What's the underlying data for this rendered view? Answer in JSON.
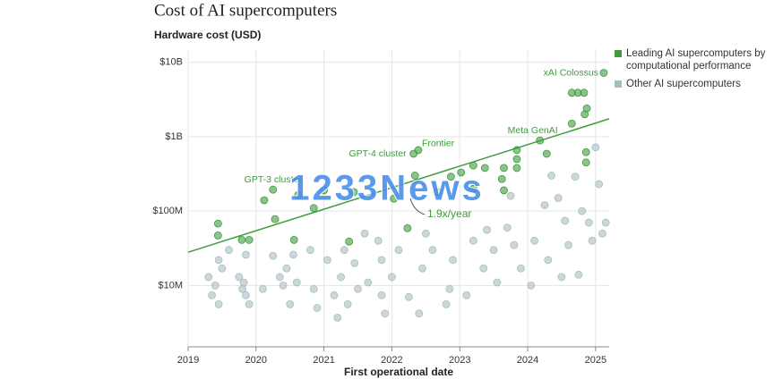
{
  "chart_data": {
    "type": "scatter",
    "title": "Cost of AI supercomputers",
    "ylabel": "Hardware cost (USD)",
    "xlabel": "First operational date",
    "log_y": true,
    "grid": true,
    "legend": "top-right",
    "xlim": [
      2019,
      2025.2
    ],
    "xticks": [
      2019,
      2020,
      2021,
      2022,
      2023,
      2024,
      2025
    ],
    "ylim": [
      1500000,
      15000000000
    ],
    "yticks": [
      {
        "value": 10000000,
        "label": "$10M"
      },
      {
        "value": 100000000,
        "label": "$100M"
      },
      {
        "value": 1000000000,
        "label": "$1B"
      },
      {
        "value": 10000000000,
        "label": "$10B"
      }
    ],
    "series": [
      {
        "name": "Other AI supercomputers",
        "color": "#a9bcc0",
        "x": [
          2019.3,
          2019.35,
          2019.4,
          2019.45,
          2019.45,
          2019.5,
          2019.6,
          2019.75,
          2019.8,
          2019.82,
          2019.85,
          2019.85,
          2019.9,
          2020.1,
          2020.25,
          2020.35,
          2020.4,
          2020.45,
          2020.5,
          2020.55,
          2020.6,
          2020.8,
          2020.85,
          2020.9,
          2021.05,
          2021.15,
          2021.2,
          2021.25,
          2021.3,
          2021.35,
          2021.45,
          2021.5,
          2021.6,
          2021.65,
          2021.8,
          2021.85,
          2021.85,
          2021.9,
          2022.0,
          2022.1,
          2022.25,
          2022.4,
          2022.45,
          2022.5,
          2022.6,
          2022.8,
          2022.85,
          2022.9,
          2023.1,
          2023.2,
          2023.35,
          2023.4,
          2023.5,
          2023.55,
          2023.7,
          2023.75,
          2023.8,
          2023.9,
          2024.05,
          2024.1,
          2024.25,
          2024.3,
          2024.35,
          2024.45,
          2024.5,
          2024.55,
          2024.6,
          2024.7,
          2024.75,
          2024.8,
          2024.9,
          2024.95,
          2025.0,
          2025.05,
          2025.1,
          2025.15
        ],
        "values": [
          13000000,
          7400000,
          10000000,
          22000000,
          5600000,
          17000000,
          30000000,
          13000000,
          9000000,
          11000000,
          7400000,
          26000000,
          5600000,
          9000000,
          25000000,
          13000000,
          10000000,
          17000000,
          5600000,
          26000000,
          11000000,
          30000000,
          9000000,
          5000000,
          22000000,
          7400000,
          3700000,
          13000000,
          30000000,
          5600000,
          20000000,
          9000000,
          50000000,
          11000000,
          40000000,
          7400000,
          22000000,
          4200000,
          13000000,
          30000000,
          7000000,
          4200000,
          17000000,
          50000000,
          30000000,
          5600000,
          9000000,
          22000000,
          7400000,
          40000000,
          17000000,
          56000000,
          30000000,
          11000000,
          60000000,
          160000000,
          35000000,
          17000000,
          10000000,
          40000000,
          120000000,
          22000000,
          300000000,
          150000000,
          13000000,
          74000000,
          35000000,
          290000000,
          14000000,
          100000000,
          70000000,
          40000000,
          720000000,
          230000000,
          50000000,
          70000000
        ]
      },
      {
        "name": "Leading AI supercomputers by computational performance",
        "color": "#3e9b3e",
        "x": [
          2019.44,
          2019.44,
          2019.79,
          2019.9,
          2020.12,
          2020.28,
          2020.25,
          2020.56,
          2020.62,
          2020.85,
          2021.0,
          2021.37,
          2021.44,
          2022.03,
          2022.23,
          2022.32,
          2022.39,
          2022.34,
          2022.67,
          2022.87,
          2023.02,
          2023.2,
          2023.2,
          2023.37,
          2023.62,
          2023.65,
          2023.65,
          2023.84,
          2023.84,
          2023.84,
          2024.18,
          2024.28,
          2024.65,
          2024.65,
          2024.74,
          2024.83,
          2024.87,
          2024.84,
          2024.86,
          2024.86,
          2025.12
        ],
        "values": [
          68000000,
          47000000,
          41000000,
          41000000,
          140000000,
          78000000,
          194000000,
          41000000,
          164000000,
          110000000,
          190000000,
          39000000,
          180000000,
          147000000,
          59000000,
          590000000,
          660000000,
          300000000,
          180000000,
          290000000,
          330000000,
          410000000,
          200000000,
          380000000,
          270000000,
          380000000,
          190000000,
          660000000,
          500000000,
          380000000,
          890000000,
          590000000,
          1500000000,
          3900000000,
          3900000000,
          3900000000,
          2400000000,
          2000000000,
          620000000,
          450000000,
          7200000000
        ]
      }
    ],
    "annotations": [
      {
        "text": "GPT-3 cluster",
        "x": 2020.25,
        "y": 194000000
      },
      {
        "text": "GPT-4 cluster",
        "x": 2022.32,
        "y": 590000000
      },
      {
        "text": "Frontier",
        "x": 2022.39,
        "y": 660000000
      },
      {
        "text": "Meta GenAI",
        "x": 2024.18,
        "y": 890000000
      },
      {
        "text": "xAI Colossus",
        "x": 2025.12,
        "y": 7200000000
      }
    ],
    "trend": {
      "label": "1.9x/year",
      "x": [
        2019,
        2025.2
      ],
      "values": [
        28000000,
        1740000000
      ]
    },
    "watermark": "1233News"
  }
}
